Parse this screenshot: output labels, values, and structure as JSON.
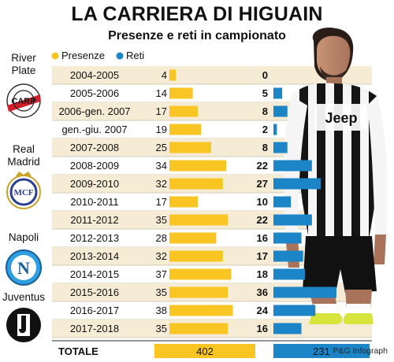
{
  "title": "LA CARRIERA DI HIGUAIN",
  "subtitle": "Presenze e reti in campionato",
  "credit": "P&G Infograph",
  "colors": {
    "presenze": "#f9c523",
    "reti": "#1c85c8",
    "stripe": "#f6ecd6",
    "rule": "#c9bfa8"
  },
  "clubs": [
    {
      "name": "River Plate",
      "logo": "river-plate-logo"
    },
    {
      "name": "Real Madrid",
      "logo": "real-madrid-logo"
    },
    {
      "name": "Napoli",
      "logo": "napoli-logo"
    },
    {
      "name": "Juventus",
      "logo": "juventus-logo"
    }
  ],
  "chart_data": {
    "type": "bar",
    "title": "LA CARRIERA DI HIGUAIN",
    "subtitle": "Presenze e reti in campionato",
    "categories": [
      "2004-2005",
      "2005-2006",
      "2006-gen. 2007",
      "gen.-giu. 2007",
      "2007-2008",
      "2008-2009",
      "2009-2010",
      "2010-2011",
      "2011-2012",
      "2012-2013",
      "2013-2014",
      "2014-2015",
      "2015-2016",
      "2016-2017",
      "2017-2018"
    ],
    "series": [
      {
        "name": "Presenze",
        "color": "#f9c523",
        "values": [
          4,
          14,
          17,
          19,
          25,
          34,
          32,
          17,
          35,
          28,
          32,
          37,
          35,
          38,
          35
        ]
      },
      {
        "name": "Reti",
        "color": "#1c85c8",
        "values": [
          0,
          5,
          8,
          2,
          8,
          22,
          27,
          10,
          22,
          16,
          17,
          18,
          36,
          24,
          16
        ]
      }
    ],
    "totals": {
      "label": "TOTALE",
      "presenze": 402,
      "reti": 231
    },
    "legend": "top-left",
    "grid": false
  }
}
